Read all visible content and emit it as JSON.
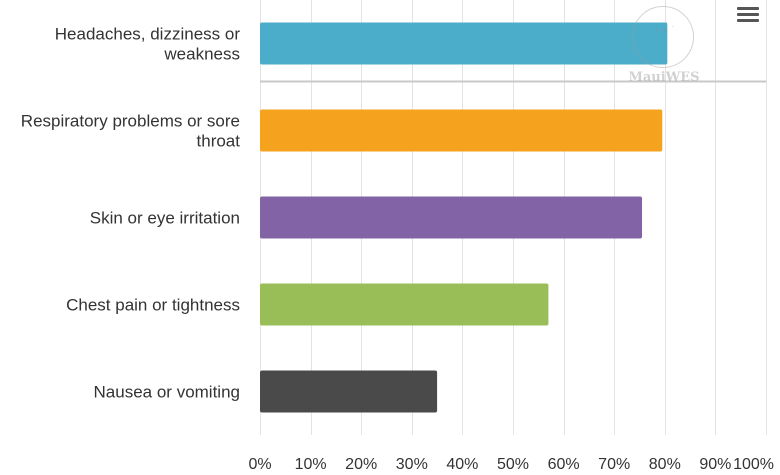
{
  "chart_data": {
    "type": "bar",
    "orientation": "horizontal",
    "categories": [
      "Headaches, dizziness or weakness",
      "Respiratory problems or sore throat",
      "Skin or eye irritation",
      "Chest pain or tightness",
      "Nausea or vomiting"
    ],
    "category_lines": [
      [
        "Headaches, dizziness or",
        "weakness"
      ],
      [
        "Respiratory problems or sore",
        "throat"
      ],
      [
        "Skin or eye irritation"
      ],
      [
        "Chest pain or tightness"
      ],
      [
        "Nausea or vomiting"
      ]
    ],
    "values": [
      80.5,
      79.5,
      75.5,
      57,
      35
    ],
    "colors": [
      "#4badc9",
      "#f5a21e",
      "#8263a6",
      "#99bd57",
      "#4a4a4a"
    ],
    "xlim": [
      0,
      100
    ],
    "x_ticks": [
      "0%",
      "10%",
      "20%",
      "30%",
      "40%",
      "50%",
      "60%",
      "70%",
      "80%",
      "90%",
      "100%"
    ],
    "grid": true,
    "title": "",
    "xlabel": "",
    "ylabel": ""
  },
  "watermark": {
    "text": "MauiWES"
  },
  "menu": {
    "icon": "hamburger-menu-icon"
  }
}
